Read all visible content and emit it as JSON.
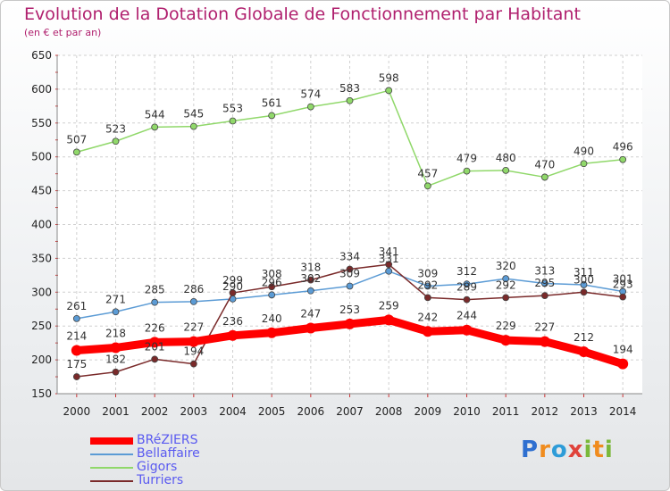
{
  "title": "Evolution de la Dotation Globale de Fonctionnement par Habitant",
  "subtitle": "(en € et par an)",
  "logo": "Proxiti",
  "chart_data": {
    "type": "line",
    "x": [
      2000,
      2001,
      2002,
      2003,
      2004,
      2005,
      2006,
      2007,
      2008,
      2009,
      2010,
      2011,
      2012,
      2013,
      2014
    ],
    "ylim": [
      150,
      650
    ],
    "yticks": [
      150,
      200,
      250,
      300,
      350,
      400,
      450,
      500,
      550,
      600,
      650
    ],
    "grid": true,
    "legend": "bottom-left",
    "series": [
      {
        "name": "BRéZIERS",
        "color": "#ff0000",
        "values": [
          214,
          218,
          226,
          227,
          236,
          240,
          247,
          253,
          259,
          242,
          244,
          229,
          227,
          212,
          194
        ]
      },
      {
        "name": "Bellaffaire",
        "color": "#5b9bd5",
        "values": [
          261,
          271,
          285,
          286,
          290,
          296,
          302,
          309,
          331,
          309,
          312,
          320,
          313,
          311,
          301
        ]
      },
      {
        "name": "Gigors",
        "color": "#90d86a",
        "values": [
          507,
          523,
          544,
          545,
          553,
          561,
          574,
          583,
          598,
          457,
          479,
          480,
          470,
          490,
          496
        ]
      },
      {
        "name": "Turriers",
        "color": "#7a2a2a",
        "values": [
          175,
          182,
          201,
          194,
          299,
          308,
          318,
          334,
          341,
          292,
          289,
          292,
          295,
          300,
          293
        ]
      }
    ]
  }
}
